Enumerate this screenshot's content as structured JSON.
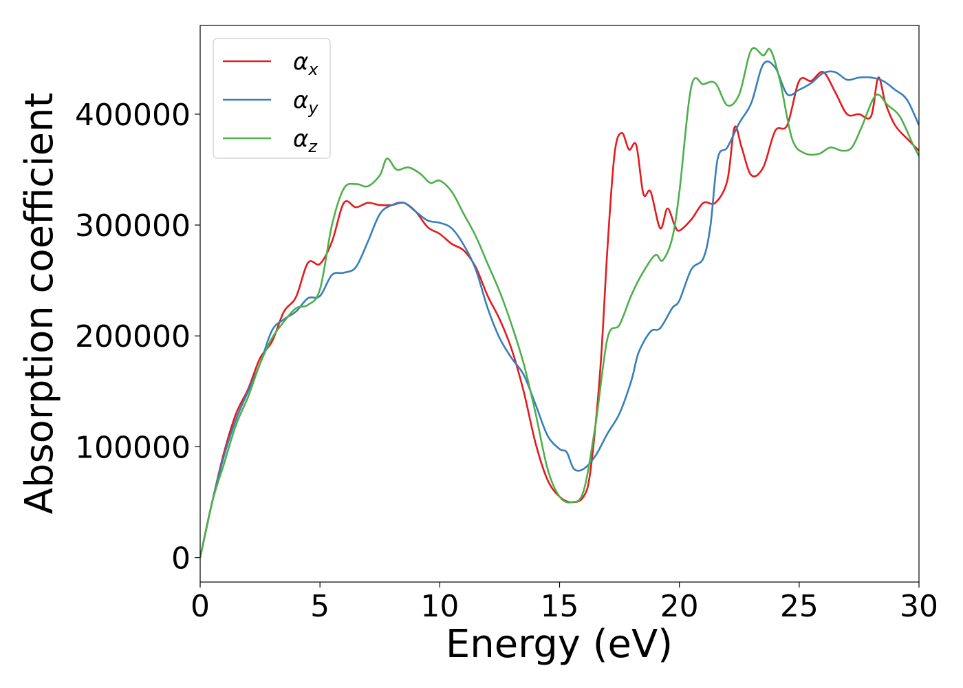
{
  "chart_data": {
    "type": "line",
    "title": "",
    "xlabel": "Energy (eV)",
    "ylabel": "Absorption coefficient",
    "xlim": [
      0,
      30
    ],
    "ylim": [
      -22000,
      480000
    ],
    "x_ticks": [
      0,
      5,
      10,
      15,
      20,
      25,
      30
    ],
    "y_ticks": [
      0,
      100000,
      200000,
      300000,
      400000
    ],
    "x_tick_labels": [
      "0",
      "5",
      "10",
      "15",
      "20",
      "25",
      "30"
    ],
    "y_tick_labels": [
      "0",
      "100000",
      "200000",
      "300000",
      "400000"
    ],
    "grid": false,
    "legend_position": "top-left",
    "series": [
      {
        "name": "α",
        "subscript": "x",
        "color": "#e41a1c",
        "points": [
          [
            0,
            0
          ],
          [
            0.5,
            50000
          ],
          [
            1,
            95000
          ],
          [
            1.5,
            130000
          ],
          [
            2,
            152000
          ],
          [
            2.5,
            180000
          ],
          [
            3,
            195000
          ],
          [
            3.5,
            222000
          ],
          [
            4,
            235000
          ],
          [
            4.5,
            266000
          ],
          [
            5,
            265000
          ],
          [
            5.5,
            285000
          ],
          [
            6,
            320000
          ],
          [
            6.5,
            316000
          ],
          [
            7,
            320000
          ],
          [
            7.5,
            318000
          ],
          [
            8,
            318000
          ],
          [
            8.5,
            320000
          ],
          [
            9,
            312000
          ],
          [
            9.5,
            298000
          ],
          [
            10,
            292000
          ],
          [
            10.5,
            283000
          ],
          [
            11,
            277000
          ],
          [
            11.5,
            262000
          ],
          [
            12,
            236000
          ],
          [
            12.5,
            215000
          ],
          [
            13,
            188000
          ],
          [
            13.5,
            150000
          ],
          [
            14,
            103000
          ],
          [
            14.5,
            70000
          ],
          [
            15,
            55000
          ],
          [
            15.5,
            50000
          ],
          [
            16,
            55000
          ],
          [
            16.3,
            80000
          ],
          [
            16.7,
            170000
          ],
          [
            17,
            280000
          ],
          [
            17.3,
            365000
          ],
          [
            17.6,
            383000
          ],
          [
            17.9,
            368000
          ],
          [
            18.2,
            372000
          ],
          [
            18.5,
            328000
          ],
          [
            18.8,
            330000
          ],
          [
            19.2,
            297000
          ],
          [
            19.5,
            315000
          ],
          [
            19.8,
            300000
          ],
          [
            20,
            295000
          ],
          [
            20.5,
            305000
          ],
          [
            21,
            320000
          ],
          [
            21.5,
            320000
          ],
          [
            22,
            340000
          ],
          [
            22.3,
            388000
          ],
          [
            22.6,
            370000
          ],
          [
            23,
            345000
          ],
          [
            23.5,
            352000
          ],
          [
            24,
            385000
          ],
          [
            24.5,
            390000
          ],
          [
            25,
            430000
          ],
          [
            25.5,
            430000
          ],
          [
            26,
            438000
          ],
          [
            26.5,
            420000
          ],
          [
            27,
            400000
          ],
          [
            27.5,
            400000
          ],
          [
            28,
            398000
          ],
          [
            28.3,
            433000
          ],
          [
            28.6,
            410000
          ],
          [
            29,
            390000
          ],
          [
            29.5,
            378000
          ],
          [
            30,
            367000
          ]
        ]
      },
      {
        "name": "α",
        "subscript": "y",
        "color": "#377eb8",
        "points": [
          [
            0,
            0
          ],
          [
            0.5,
            50000
          ],
          [
            1,
            92000
          ],
          [
            1.5,
            125000
          ],
          [
            2,
            150000
          ],
          [
            2.5,
            175000
          ],
          [
            3,
            205000
          ],
          [
            3.5,
            215000
          ],
          [
            4,
            222000
          ],
          [
            4.5,
            234000
          ],
          [
            5,
            236000
          ],
          [
            5.5,
            255000
          ],
          [
            6,
            257000
          ],
          [
            6.5,
            262000
          ],
          [
            7,
            285000
          ],
          [
            7.5,
            310000
          ],
          [
            8,
            318000
          ],
          [
            8.5,
            320000
          ],
          [
            9,
            312000
          ],
          [
            9.5,
            304000
          ],
          [
            10,
            302000
          ],
          [
            10.5,
            297000
          ],
          [
            11,
            282000
          ],
          [
            11.5,
            260000
          ],
          [
            12,
            225000
          ],
          [
            12.5,
            198000
          ],
          [
            13,
            180000
          ],
          [
            13.5,
            165000
          ],
          [
            14,
            138000
          ],
          [
            14.5,
            110000
          ],
          [
            15,
            98000
          ],
          [
            15.3,
            95000
          ],
          [
            15.6,
            80000
          ],
          [
            16,
            80000
          ],
          [
            16.5,
            92000
          ],
          [
            17,
            112000
          ],
          [
            17.5,
            130000
          ],
          [
            18,
            160000
          ],
          [
            18.3,
            185000
          ],
          [
            18.8,
            204000
          ],
          [
            19.2,
            207000
          ],
          [
            19.7,
            225000
          ],
          [
            20,
            232000
          ],
          [
            20.5,
            260000
          ],
          [
            21,
            270000
          ],
          [
            21.3,
            300000
          ],
          [
            21.6,
            360000
          ],
          [
            22,
            370000
          ],
          [
            22.5,
            392000
          ],
          [
            23,
            410000
          ],
          [
            23.5,
            445000
          ],
          [
            24,
            442000
          ],
          [
            24.5,
            418000
          ],
          [
            25,
            422000
          ],
          [
            25.5,
            428000
          ],
          [
            26,
            437000
          ],
          [
            26.5,
            438000
          ],
          [
            27,
            431000
          ],
          [
            27.5,
            433000
          ],
          [
            28,
            433000
          ],
          [
            28.5,
            430000
          ],
          [
            29,
            422000
          ],
          [
            29.5,
            413000
          ],
          [
            30,
            390000
          ]
        ]
      },
      {
        "name": "α",
        "subscript": "z",
        "color": "#4daf4a",
        "points": [
          [
            0,
            0
          ],
          [
            0.5,
            50000
          ],
          [
            1,
            85000
          ],
          [
            1.5,
            120000
          ],
          [
            2,
            145000
          ],
          [
            2.5,
            175000
          ],
          [
            3,
            198000
          ],
          [
            3.5,
            213000
          ],
          [
            4,
            225000
          ],
          [
            4.5,
            228000
          ],
          [
            5,
            242000
          ],
          [
            5.5,
            300000
          ],
          [
            6,
            333000
          ],
          [
            6.5,
            337000
          ],
          [
            7,
            335000
          ],
          [
            7.5,
            345000
          ],
          [
            7.8,
            360000
          ],
          [
            8.2,
            350000
          ],
          [
            8.7,
            352000
          ],
          [
            9.2,
            346000
          ],
          [
            9.6,
            338000
          ],
          [
            10,
            340000
          ],
          [
            10.5,
            330000
          ],
          [
            11,
            310000
          ],
          [
            11.5,
            290000
          ],
          [
            12,
            265000
          ],
          [
            12.5,
            240000
          ],
          [
            13,
            210000
          ],
          [
            13.5,
            175000
          ],
          [
            14,
            130000
          ],
          [
            14.5,
            80000
          ],
          [
            15,
            55000
          ],
          [
            15.5,
            50000
          ],
          [
            16,
            60000
          ],
          [
            16.5,
            120000
          ],
          [
            17,
            198000
          ],
          [
            17.5,
            210000
          ],
          [
            18,
            237000
          ],
          [
            18.5,
            258000
          ],
          [
            19,
            273000
          ],
          [
            19.3,
            268000
          ],
          [
            19.7,
            288000
          ],
          [
            20,
            330000
          ],
          [
            20.5,
            425000
          ],
          [
            21,
            427000
          ],
          [
            21.5,
            428000
          ],
          [
            22,
            408000
          ],
          [
            22.5,
            418000
          ],
          [
            23,
            458000
          ],
          [
            23.5,
            453000
          ],
          [
            23.8,
            458000
          ],
          [
            24.2,
            430000
          ],
          [
            24.7,
            378000
          ],
          [
            25.2,
            365000
          ],
          [
            25.8,
            364000
          ],
          [
            26.3,
            370000
          ],
          [
            26.8,
            367000
          ],
          [
            27.2,
            370000
          ],
          [
            27.6,
            388000
          ],
          [
            28.2,
            417000
          ],
          [
            28.7,
            408000
          ],
          [
            29.2,
            398000
          ],
          [
            29.7,
            375000
          ],
          [
            30,
            362000
          ]
        ]
      }
    ]
  }
}
